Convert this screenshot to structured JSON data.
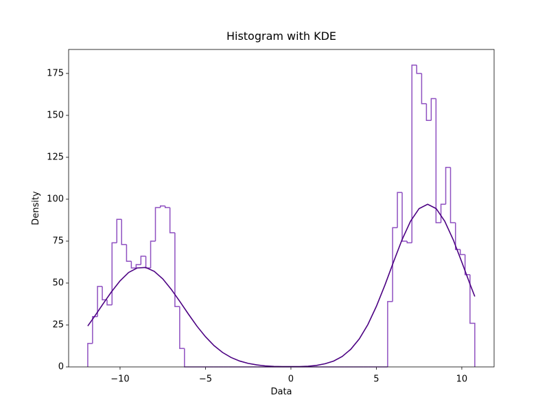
{
  "chart_data": {
    "type": "histogram",
    "title": "Histogram with KDE",
    "x_label": "Data",
    "y_label": "Density",
    "bins": [
      -11.89,
      -11.61,
      -11.32,
      -11.04,
      -10.76,
      -10.47,
      -10.19,
      -9.91,
      -9.62,
      -9.34,
      -9.06,
      -8.78,
      -8.49,
      -8.21,
      -7.93,
      -7.64,
      -7.36,
      -7.08,
      -6.79,
      -6.51,
      -6.23,
      -5.94,
      -5.66,
      -5.38,
      -5.09,
      -4.81,
      -4.53,
      -4.25,
      -3.96,
      -3.68,
      -3.4,
      -3.11,
      -2.83,
      -2.55,
      -2.26,
      -1.98,
      -1.7,
      -1.41,
      -1.13,
      -0.85,
      -0.57,
      -0.28,
      0,
      0.28,
      0.57,
      0.85,
      1.13,
      1.42,
      1.7,
      1.98,
      2.27,
      2.55,
      2.83,
      3.12,
      3.4,
      3.68,
      3.96,
      4.25,
      4.53,
      4.81,
      5.1,
      5.38,
      5.66,
      5.95,
      6.23,
      6.51,
      6.8,
      7.08,
      7.36,
      7.65,
      7.93,
      8.21,
      8.49,
      8.78,
      9.06,
      9.34,
      9.63,
      9.91,
      10.19,
      10.48,
      10.76
    ],
    "counts": [
      14,
      30,
      48,
      40,
      37,
      74,
      88,
      73,
      63,
      59,
      61,
      66,
      59,
      75,
      95,
      96,
      95,
      80,
      36,
      11,
      0,
      0,
      0,
      0,
      0,
      0,
      0,
      0,
      0,
      0,
      0,
      0,
      0,
      0,
      0,
      0,
      0,
      0,
      0,
      0,
      0,
      0,
      0,
      0,
      0,
      0,
      0,
      0,
      0,
      0,
      0,
      0,
      0,
      0,
      0,
      0,
      0,
      0,
      0,
      0,
      0,
      0,
      39,
      83,
      104,
      75,
      74,
      180,
      175,
      157,
      147,
      160,
      86,
      97,
      119,
      86,
      70,
      67,
      55,
      26
    ],
    "color": "#8e4fc0",
    "kde": {
      "color": "#4b0082",
      "x": [
        -11.89,
        -11.5,
        -11,
        -10.5,
        -10,
        -9.5,
        -9,
        -8.5,
        -8,
        -7.5,
        -7,
        -6.5,
        -6,
        -5.5,
        -5,
        -4.5,
        -4,
        -3.5,
        -3,
        -2.5,
        -2,
        -1.5,
        -1,
        -0.5,
        0,
        0.5,
        1,
        1.5,
        2,
        2.5,
        3,
        3.5,
        4,
        4.5,
        5,
        5.5,
        6,
        6.5,
        7,
        7.5,
        8,
        8.5,
        9,
        9.5,
        10,
        10.5,
        10.76
      ],
      "y": [
        24.4,
        30.0,
        37.5,
        44.8,
        51.3,
        56.3,
        59.0,
        59.3,
        57.0,
        52.5,
        46.2,
        39.0,
        31.5,
        24.3,
        18.0,
        12.7,
        8.6,
        5.6,
        3.5,
        2.1,
        1.2,
        0.6,
        0.3,
        0.2,
        0.2,
        0.2,
        0.4,
        0.9,
        1.9,
        3.5,
        6.2,
        10.5,
        16.7,
        25.2,
        36.1,
        48.8,
        62.5,
        75.8,
        86.9,
        94.4,
        97.0,
        94.4,
        86.9,
        75.8,
        62.5,
        48.8,
        42.0
      ]
    },
    "xlim": [
      -13.01,
      11.89
    ],
    "ylim": [
      0,
      189.3
    ],
    "xticks": [
      {
        "value": -10,
        "label": "−10"
      },
      {
        "value": -5,
        "label": "−5"
      },
      0,
      5,
      10
    ],
    "yticks": [
      0,
      25,
      50,
      75,
      100,
      125,
      150,
      175
    ]
  }
}
